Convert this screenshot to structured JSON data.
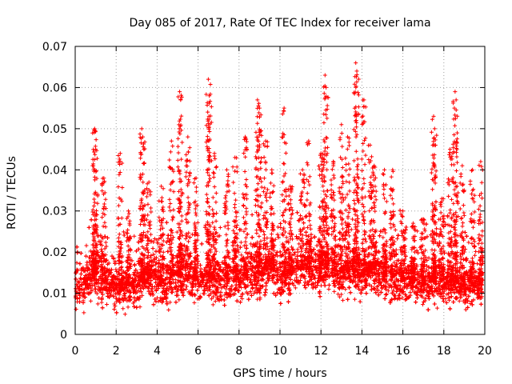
{
  "chart_data": {
    "type": "scatter",
    "title": "Day 085 of 2017, Rate Of TEC Index for receiver lama",
    "xlabel": "GPS time / hours",
    "ylabel": "ROTI / TECUs",
    "xlim": [
      0,
      20
    ],
    "ylim": [
      0,
      0.07
    ],
    "x_ticks": [
      "0",
      "2",
      "4",
      "6",
      "8",
      "10",
      "12",
      "14",
      "16",
      "18",
      "20"
    ],
    "y_ticks": [
      "0",
      "0.01",
      "0.02",
      "0.03",
      "0.04",
      "0.05",
      "0.06",
      "0.07"
    ],
    "grid": true,
    "marker": "plus",
    "color": "#ff0000",
    "baseline": [
      [
        0.0,
        0.011
      ],
      [
        0.5,
        0.012
      ],
      [
        1.0,
        0.015
      ],
      [
        1.5,
        0.012
      ],
      [
        2.0,
        0.011
      ],
      [
        2.5,
        0.012
      ],
      [
        3.0,
        0.012
      ],
      [
        3.5,
        0.014
      ],
      [
        4.0,
        0.013
      ],
      [
        4.5,
        0.012
      ],
      [
        5.0,
        0.014
      ],
      [
        5.5,
        0.014
      ],
      [
        6.0,
        0.013
      ],
      [
        6.5,
        0.014
      ],
      [
        7.0,
        0.013
      ],
      [
        7.5,
        0.013
      ],
      [
        8.0,
        0.014
      ],
      [
        8.5,
        0.015
      ],
      [
        9.0,
        0.015
      ],
      [
        9.5,
        0.016
      ],
      [
        10.0,
        0.014
      ],
      [
        10.5,
        0.015
      ],
      [
        11.0,
        0.016
      ],
      [
        11.5,
        0.016
      ],
      [
        12.0,
        0.016
      ],
      [
        12.5,
        0.016
      ],
      [
        13.0,
        0.015
      ],
      [
        13.5,
        0.016
      ],
      [
        14.0,
        0.015
      ],
      [
        14.5,
        0.015
      ],
      [
        15.0,
        0.014
      ],
      [
        15.5,
        0.014
      ],
      [
        16.0,
        0.013
      ],
      [
        16.5,
        0.013
      ],
      [
        17.0,
        0.012
      ],
      [
        17.5,
        0.013
      ],
      [
        18.0,
        0.013
      ],
      [
        18.5,
        0.013
      ],
      [
        19.0,
        0.012
      ],
      [
        19.5,
        0.012
      ],
      [
        19.9,
        0.012
      ]
    ],
    "peaks": [
      [
        0.95,
        0.05
      ],
      [
        1.0,
        0.045
      ],
      [
        1.4,
        0.038
      ],
      [
        2.2,
        0.044
      ],
      [
        2.6,
        0.03
      ],
      [
        3.25,
        0.05
      ],
      [
        3.3,
        0.048
      ],
      [
        3.6,
        0.037
      ],
      [
        4.2,
        0.036
      ],
      [
        4.7,
        0.047
      ],
      [
        5.1,
        0.059
      ],
      [
        5.15,
        0.057
      ],
      [
        5.5,
        0.048
      ],
      [
        5.9,
        0.038
      ],
      [
        6.5,
        0.062
      ],
      [
        6.55,
        0.058
      ],
      [
        6.8,
        0.044
      ],
      [
        7.4,
        0.04
      ],
      [
        7.8,
        0.043
      ],
      [
        8.3,
        0.048
      ],
      [
        8.9,
        0.057
      ],
      [
        9.0,
        0.055
      ],
      [
        9.3,
        0.047
      ],
      [
        9.6,
        0.04
      ],
      [
        10.2,
        0.055
      ],
      [
        10.5,
        0.036
      ],
      [
        11.1,
        0.04
      ],
      [
        11.4,
        0.047
      ],
      [
        12.0,
        0.044
      ],
      [
        12.2,
        0.063
      ],
      [
        12.25,
        0.06
      ],
      [
        12.6,
        0.042
      ],
      [
        13.0,
        0.051
      ],
      [
        13.3,
        0.048
      ],
      [
        13.7,
        0.066
      ],
      [
        13.75,
        0.064
      ],
      [
        14.1,
        0.057
      ],
      [
        14.4,
        0.046
      ],
      [
        14.6,
        0.041
      ],
      [
        15.1,
        0.04
      ],
      [
        15.5,
        0.04
      ],
      [
        16.0,
        0.03
      ],
      [
        16.5,
        0.027
      ],
      [
        17.0,
        0.028
      ],
      [
        17.5,
        0.053
      ],
      [
        17.55,
        0.05
      ],
      [
        17.9,
        0.033
      ],
      [
        18.3,
        0.045
      ],
      [
        18.55,
        0.059
      ],
      [
        18.6,
        0.057
      ],
      [
        18.9,
        0.041
      ],
      [
        19.4,
        0.04
      ],
      [
        19.8,
        0.042
      ]
    ]
  }
}
